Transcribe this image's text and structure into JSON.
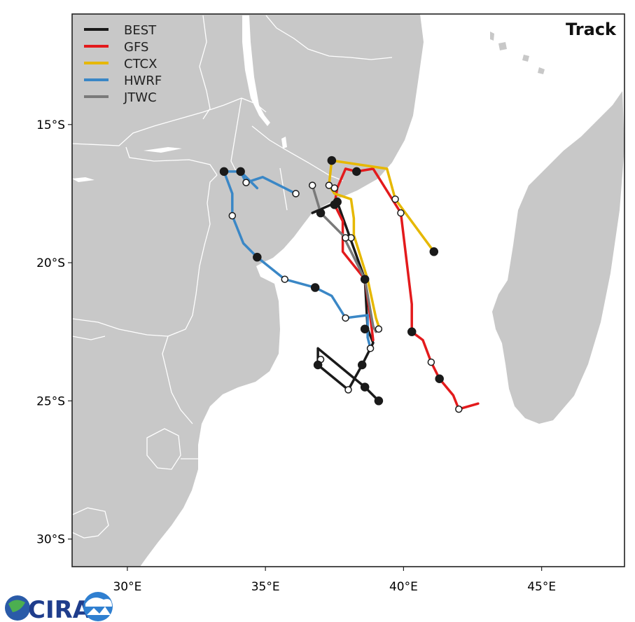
{
  "map": {
    "title": "Track",
    "extent": {
      "lon": [
        28,
        48
      ],
      "lat": [
        -31,
        -11
      ]
    },
    "x_ticks": [
      {
        "lon": 30,
        "label": "30°E"
      },
      {
        "lon": 35,
        "label": "35°E"
      },
      {
        "lon": 40,
        "label": "40°E"
      },
      {
        "lon": 45,
        "label": "45°E"
      }
    ],
    "y_ticks": [
      {
        "lat": -15,
        "label": "15°S"
      },
      {
        "lat": -20,
        "label": "20°S"
      },
      {
        "lat": -25,
        "label": "25°S"
      },
      {
        "lat": -30,
        "label": "30°S"
      }
    ],
    "colors": {
      "land": "#c8c8c8",
      "border": "#ffffff",
      "ocean": "#ffffff"
    }
  },
  "legend": [
    {
      "name": "BEST",
      "color": "#1a1a1a"
    },
    {
      "name": "GFS",
      "color": "#e31a1c"
    },
    {
      "name": "CTCX",
      "color": "#e6b800"
    },
    {
      "name": "HWRF",
      "color": "#3a87c6"
    },
    {
      "name": "JTWC",
      "color": "#7a7a7a"
    }
  ],
  "chart_data": {
    "type": "map-tracks",
    "tracks": [
      {
        "name": "BEST",
        "color": "#1a1a1a",
        "points": [
          [
            39.1,
            -25.0
          ],
          [
            38.6,
            -24.5
          ],
          [
            36.9,
            -23.1
          ],
          [
            36.9,
            -23.7
          ],
          [
            38.0,
            -24.6
          ],
          [
            38.5,
            -23.7
          ],
          [
            38.9,
            -22.9
          ],
          [
            38.7,
            -22.4
          ],
          [
            38.6,
            -20.6
          ],
          [
            37.6,
            -17.8
          ],
          [
            36.7,
            -18.2
          ]
        ]
      },
      {
        "name": "GFS",
        "color": "#e31a1c",
        "points": [
          [
            42.7,
            -25.1
          ],
          [
            42.0,
            -25.3
          ],
          [
            41.8,
            -24.8
          ],
          [
            41.3,
            -24.2
          ],
          [
            41.0,
            -23.6
          ],
          [
            40.7,
            -22.8
          ],
          [
            40.3,
            -22.5
          ],
          [
            40.3,
            -21.5
          ],
          [
            39.9,
            -18.2
          ],
          [
            38.9,
            -16.6
          ],
          [
            38.3,
            -16.7
          ],
          [
            37.9,
            -16.6
          ],
          [
            37.6,
            -17.3
          ],
          [
            37.5,
            -17.9
          ],
          [
            37.8,
            -18.5
          ],
          [
            37.8,
            -19.6
          ],
          [
            38.6,
            -20.6
          ],
          [
            38.8,
            -22.0
          ],
          [
            38.9,
            -22.8
          ]
        ]
      },
      {
        "name": "CTCX",
        "color": "#e6b800",
        "points": [
          [
            41.1,
            -19.6
          ],
          [
            39.7,
            -17.7
          ],
          [
            39.4,
            -16.6
          ],
          [
            37.4,
            -16.3
          ],
          [
            37.3,
            -17.2
          ],
          [
            37.5,
            -17.5
          ],
          [
            38.1,
            -17.7
          ],
          [
            38.2,
            -18.4
          ],
          [
            38.2,
            -19.0
          ],
          [
            38.7,
            -20.6
          ],
          [
            39.0,
            -22.0
          ],
          [
            39.1,
            -22.3
          ]
        ]
      },
      {
        "name": "HWRF",
        "color": "#3a87c6",
        "points": [
          [
            34.7,
            -17.3
          ],
          [
            34.1,
            -16.7
          ],
          [
            33.5,
            -16.7
          ],
          [
            33.8,
            -17.5
          ],
          [
            33.8,
            -18.3
          ],
          [
            34.2,
            -19.3
          ],
          [
            34.7,
            -19.8
          ],
          [
            35.7,
            -20.6
          ],
          [
            36.8,
            -20.9
          ],
          [
            37.4,
            -21.2
          ],
          [
            37.9,
            -22.0
          ],
          [
            38.7,
            -21.9
          ],
          [
            38.7,
            -22.7
          ],
          [
            38.8,
            -23.1
          ]
        ]
      },
      {
        "name": "HWRF-branch",
        "color": "#3a87c6",
        "points": [
          [
            34.1,
            -16.7
          ],
          [
            34.3,
            -17.1
          ],
          [
            34.9,
            -16.9
          ],
          [
            36.1,
            -17.5
          ]
        ]
      },
      {
        "name": "JTWC",
        "color": "#7a7a7a",
        "points": [
          [
            36.7,
            -17.2
          ],
          [
            37.0,
            -18.2
          ],
          [
            37.8,
            -19.0
          ],
          [
            38.6,
            -20.6
          ],
          [
            38.9,
            -22.3
          ],
          [
            39.0,
            -22.5
          ]
        ]
      }
    ],
    "markers": [
      {
        "track": "BEST",
        "lon": 39.1,
        "lat": -25.0,
        "fill": "filled"
      },
      {
        "track": "BEST",
        "lon": 38.6,
        "lat": -24.5,
        "fill": "filled"
      },
      {
        "track": "BEST",
        "lon": 38.0,
        "lat": -24.6,
        "fill": "open"
      },
      {
        "track": "BEST",
        "lon": 37.0,
        "lat": -23.5,
        "fill": "open"
      },
      {
        "track": "BEST",
        "lon": 36.9,
        "lat": -23.7,
        "fill": "filled"
      },
      {
        "track": "BEST",
        "lon": 38.5,
        "lat": -23.7,
        "fill": "filled"
      },
      {
        "track": "BEST",
        "lon": 38.8,
        "lat": -23.1,
        "fill": "open"
      },
      {
        "track": "BEST",
        "lon": 38.6,
        "lat": -22.4,
        "fill": "filled"
      },
      {
        "track": "BEST",
        "lon": 38.6,
        "lat": -20.6,
        "fill": "filled"
      },
      {
        "track": "BEST",
        "lon": 37.6,
        "lat": -17.8,
        "fill": "filled"
      },
      {
        "track": "BEST",
        "lon": 37.0,
        "lat": -18.2,
        "fill": "filled"
      },
      {
        "track": "GFS",
        "lon": 42.0,
        "lat": -25.3,
        "fill": "open"
      },
      {
        "track": "GFS",
        "lon": 41.3,
        "lat": -24.2,
        "fill": "filled"
      },
      {
        "track": "GFS",
        "lon": 41.0,
        "lat": -23.6,
        "fill": "open"
      },
      {
        "track": "GFS",
        "lon": 40.3,
        "lat": -22.5,
        "fill": "filled"
      },
      {
        "track": "GFS",
        "lon": 39.9,
        "lat": -18.2,
        "fill": "open"
      },
      {
        "track": "GFS",
        "lon": 38.3,
        "lat": -16.7,
        "fill": "filled"
      },
      {
        "track": "GFS",
        "lon": 37.5,
        "lat": -17.9,
        "fill": "filled"
      },
      {
        "track": "CTCX",
        "lon": 41.1,
        "lat": -19.6,
        "fill": "filled"
      },
      {
        "track": "CTCX",
        "lon": 39.7,
        "lat": -17.7,
        "fill": "open"
      },
      {
        "track": "CTCX",
        "lon": 37.4,
        "lat": -16.3,
        "fill": "filled"
      },
      {
        "track": "CTCX",
        "lon": 37.3,
        "lat": -17.2,
        "fill": "open"
      },
      {
        "track": "CTCX",
        "lon": 37.5,
        "lat": -17.3,
        "fill": "open"
      },
      {
        "track": "CTCX",
        "lon": 38.1,
        "lat": -19.1,
        "fill": "open"
      },
      {
        "track": "CTCX",
        "lon": 39.1,
        "lat": -22.4,
        "fill": "open"
      },
      {
        "track": "HWRF",
        "lon": 33.5,
        "lat": -16.7,
        "fill": "filled"
      },
      {
        "track": "HWRF",
        "lon": 34.1,
        "lat": -16.7,
        "fill": "filled"
      },
      {
        "track": "HWRF",
        "lon": 34.3,
        "lat": -17.1,
        "fill": "open"
      },
      {
        "track": "HWRF",
        "lon": 36.1,
        "lat": -17.5,
        "fill": "open"
      },
      {
        "track": "HWRF",
        "lon": 33.8,
        "lat": -18.3,
        "fill": "open"
      },
      {
        "track": "HWRF",
        "lon": 34.7,
        "lat": -19.8,
        "fill": "filled"
      },
      {
        "track": "HWRF",
        "lon": 35.7,
        "lat": -20.6,
        "fill": "open"
      },
      {
        "track": "HWRF",
        "lon": 36.8,
        "lat": -20.9,
        "fill": "filled"
      },
      {
        "track": "HWRF",
        "lon": 37.9,
        "lat": -22.0,
        "fill": "open"
      },
      {
        "track": "JTWC",
        "lon": 36.7,
        "lat": -17.2,
        "fill": "open"
      },
      {
        "track": "JTWC",
        "lon": 37.9,
        "lat": -19.1,
        "fill": "open"
      }
    ]
  },
  "logo": {
    "text": "CIRA"
  }
}
